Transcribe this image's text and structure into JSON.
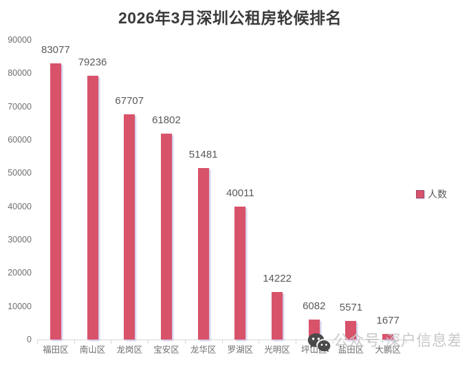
{
  "title": "2026年3月深圳公租房轮候排名",
  "legend": {
    "label": "人数"
  },
  "watermark": {
    "icon": "wechat-icon",
    "text": "公众号·深户信息差"
  },
  "colors": {
    "bar": "#D8536A",
    "bar_shadow": "#CCC3E4",
    "title_text": "#3A3A3A",
    "data_label": "#595959",
    "axis_label": "#6E6E6E",
    "axis_line": "#D6D6D6",
    "legend_text": "#595959",
    "watermark_text": "#C8C8C8",
    "watermark_icon": "#4A4A4A"
  },
  "chart_data": {
    "type": "bar",
    "title": "2026年3月深圳公租房轮候排名",
    "categories": [
      "福田区",
      "南山区",
      "龙岗区",
      "宝安区",
      "龙华区",
      "罗湖区",
      "光明区",
      "坪山区",
      "盐田区",
      "大鹏区"
    ],
    "series": [
      {
        "name": "人数",
        "values": [
          83077,
          79236,
          67707,
          61802,
          51481,
          40011,
          14222,
          6082,
          5571,
          1677
        ]
      }
    ],
    "data_labels": true,
    "xlabel": "",
    "ylabel": "",
    "ylim": [
      0,
      90000
    ],
    "ytick_interval": 10000,
    "yticks": [
      90000,
      80000,
      70000,
      60000,
      50000,
      40000,
      30000,
      20000,
      10000,
      0
    ],
    "grid": false,
    "legend_position": "middle-right",
    "bar_color": "#D8536A"
  }
}
